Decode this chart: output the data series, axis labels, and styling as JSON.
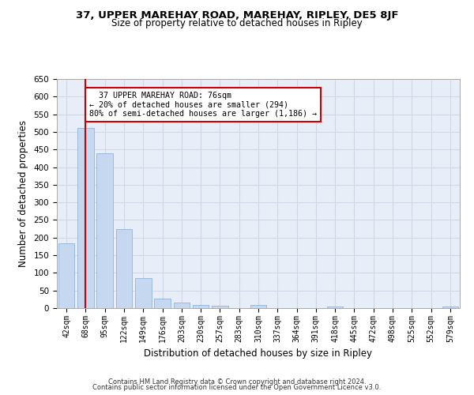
{
  "title1": "37, UPPER MAREHAY ROAD, MAREHAY, RIPLEY, DE5 8JF",
  "title2": "Size of property relative to detached houses in Ripley",
  "xlabel": "Distribution of detached houses by size in Ripley",
  "ylabel": "Number of detached properties",
  "footer1": "Contains HM Land Registry data © Crown copyright and database right 2024.",
  "footer2": "Contains public sector information licensed under the Open Government Licence v3.0.",
  "bar_labels": [
    "42sqm",
    "68sqm",
    "95sqm",
    "122sqm",
    "149sqm",
    "176sqm",
    "203sqm",
    "230sqm",
    "257sqm",
    "283sqm",
    "310sqm",
    "337sqm",
    "364sqm",
    "391sqm",
    "418sqm",
    "445sqm",
    "472sqm",
    "498sqm",
    "525sqm",
    "552sqm",
    "579sqm"
  ],
  "bar_values": [
    183,
    510,
    440,
    225,
    85,
    28,
    15,
    9,
    7,
    0,
    8,
    0,
    0,
    0,
    5,
    0,
    0,
    0,
    0,
    0,
    5
  ],
  "bar_color": "#c5d8ef",
  "bar_edge_color": "#8fb4d8",
  "grid_color": "#d0d8e8",
  "background_color": "#e8eef8",
  "vline_x": 1,
  "vline_color": "#cc0000",
  "annotation_text": "  37 UPPER MAREHAY ROAD: 76sqm\n← 20% of detached houses are smaller (294)\n80% of semi-detached houses are larger (1,186) →",
  "annotation_box_color": "#cc0000",
  "ylim": [
    0,
    650
  ],
  "yticks": [
    0,
    50,
    100,
    150,
    200,
    250,
    300,
    350,
    400,
    450,
    500,
    550,
    600,
    650
  ],
  "figsize": [
    6.0,
    5.0
  ],
  "dpi": 100
}
